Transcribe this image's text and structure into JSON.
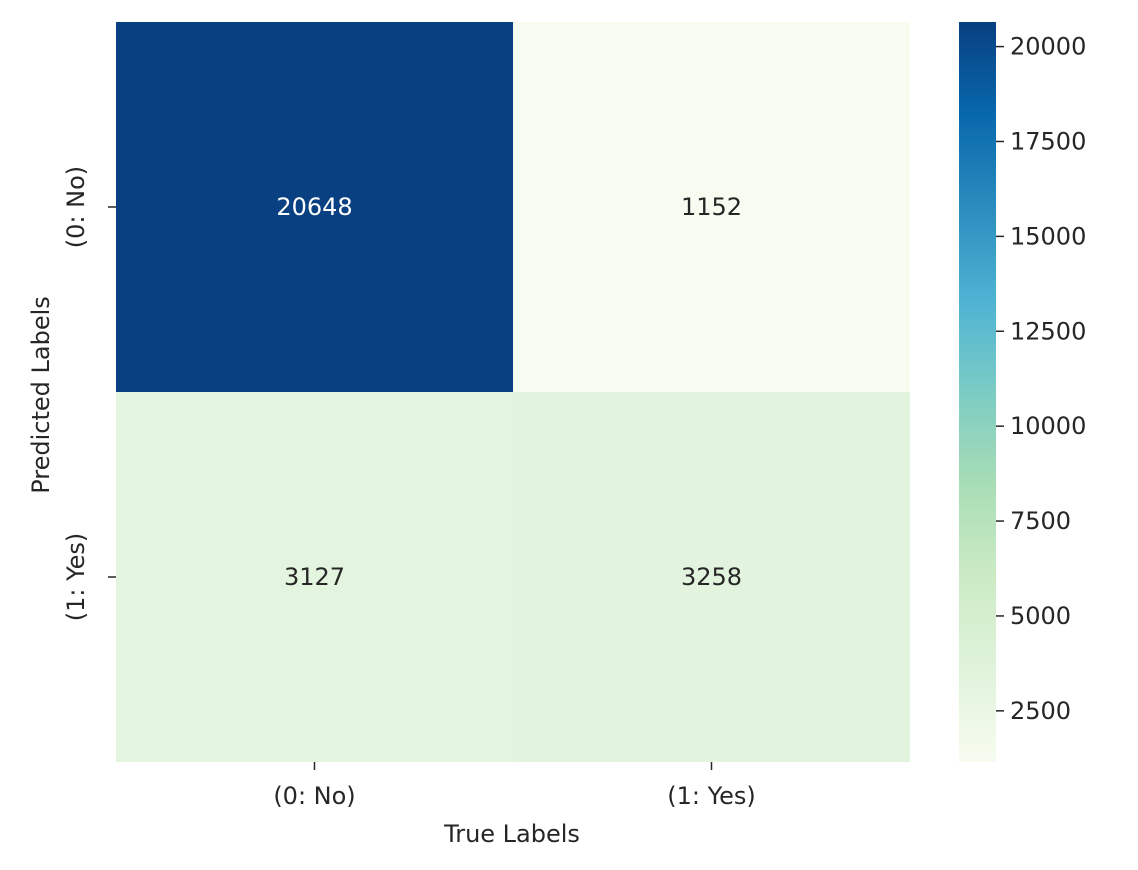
{
  "chart_data": {
    "type": "heatmap",
    "title": "",
    "xlabel": "True Labels",
    "ylabel": "Predicted Labels",
    "x_categories": [
      "(0: No)",
      "(1: Yes)"
    ],
    "y_categories": [
      "(0: No)",
      "(1: Yes)"
    ],
    "values": [
      [
        20648,
        1152
      ],
      [
        3127,
        3258
      ]
    ],
    "colormap": "GnBu",
    "colorbar": {
      "range": [
        1152,
        20648
      ],
      "ticks": [
        2500,
        5000,
        7500,
        10000,
        12500,
        15000,
        17500,
        20000
      ]
    },
    "annotations": true
  }
}
